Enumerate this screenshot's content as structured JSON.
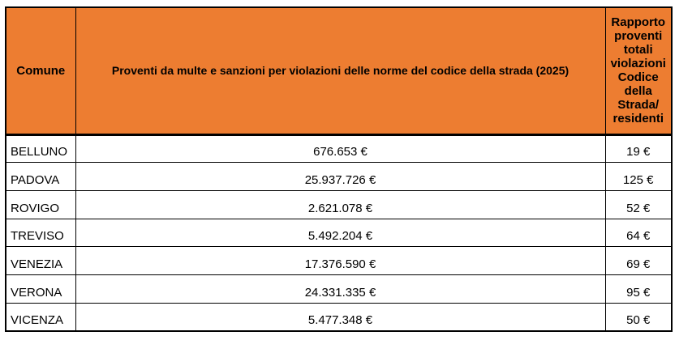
{
  "chart_data": {
    "type": "table",
    "title": "Proventi da multe e sanzioni per violazioni delle norme del codice della strada (2025)",
    "columns": [
      "Comune",
      "Proventi da multe e sanzioni per violazioni delle norme del codice della strada (2025)",
      "Rapporto proventi totali violazioni Codice della Strada/ residenti"
    ],
    "rows": [
      [
        "BELLUNO",
        "676.653 €",
        "19 €"
      ],
      [
        "PADOVA",
        "25.937.726 €",
        "125 €"
      ],
      [
        "ROVIGO",
        "2.621.078 €",
        "52 €"
      ],
      [
        "TREVISO",
        "5.492.204 €",
        "64 €"
      ],
      [
        "VENEZIA",
        "17.376.590 €",
        "69 €"
      ],
      [
        "VERONA",
        "24.331.335 €",
        "95 €"
      ],
      [
        "VICENZA",
        "5.477.348 €",
        "50 €"
      ]
    ],
    "values_numeric": {
      "proventi_eur": [
        676653,
        25937726,
        2621078,
        5492204,
        17376590,
        24331335,
        5477348
      ],
      "rapporto_eur_per_residente": [
        19,
        125,
        52,
        64,
        69,
        95,
        50
      ]
    },
    "currency": "EUR"
  },
  "colors": {
    "header_bg": "#ED7D31",
    "border": "#000000",
    "text": "#000000",
    "body_bg": "#FFFFFF"
  }
}
